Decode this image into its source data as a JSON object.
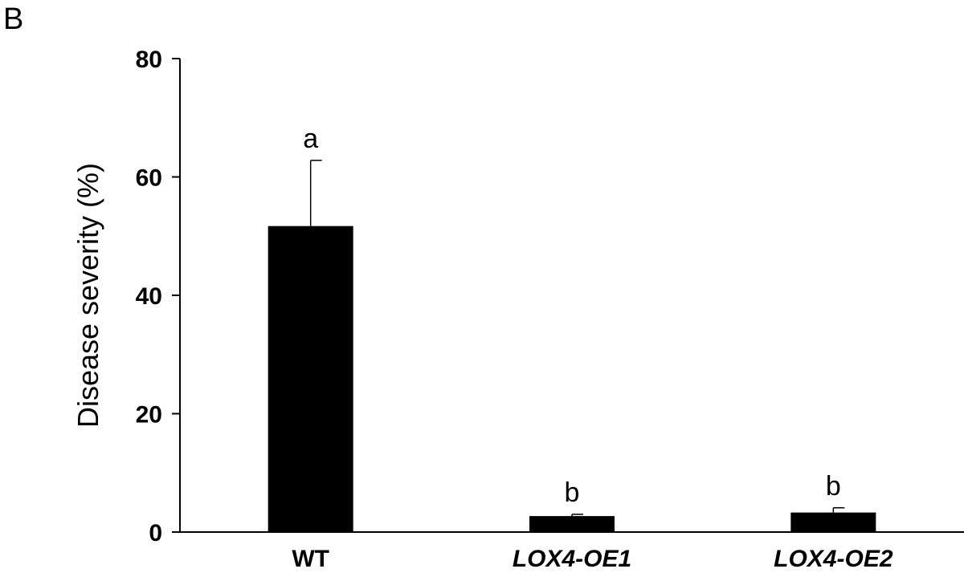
{
  "panel_label": "B",
  "chart_data": {
    "type": "bar",
    "title": "",
    "xlabel": "",
    "ylabel": "Disease severity (%)",
    "ylim": [
      0,
      80
    ],
    "yticks": [
      0,
      20,
      40,
      60,
      80
    ],
    "categories": [
      "WT",
      "LOX4-OE1",
      "LOX4-OE2"
    ],
    "italic_categories": [
      false,
      true,
      true
    ],
    "values": [
      51.7,
      2.7,
      3.3
    ],
    "errors": [
      11.1,
      0.3,
      0.8
    ],
    "significance": [
      "a",
      "b",
      "b"
    ],
    "bar_color": "#000000",
    "grid": false,
    "legend": "none"
  }
}
